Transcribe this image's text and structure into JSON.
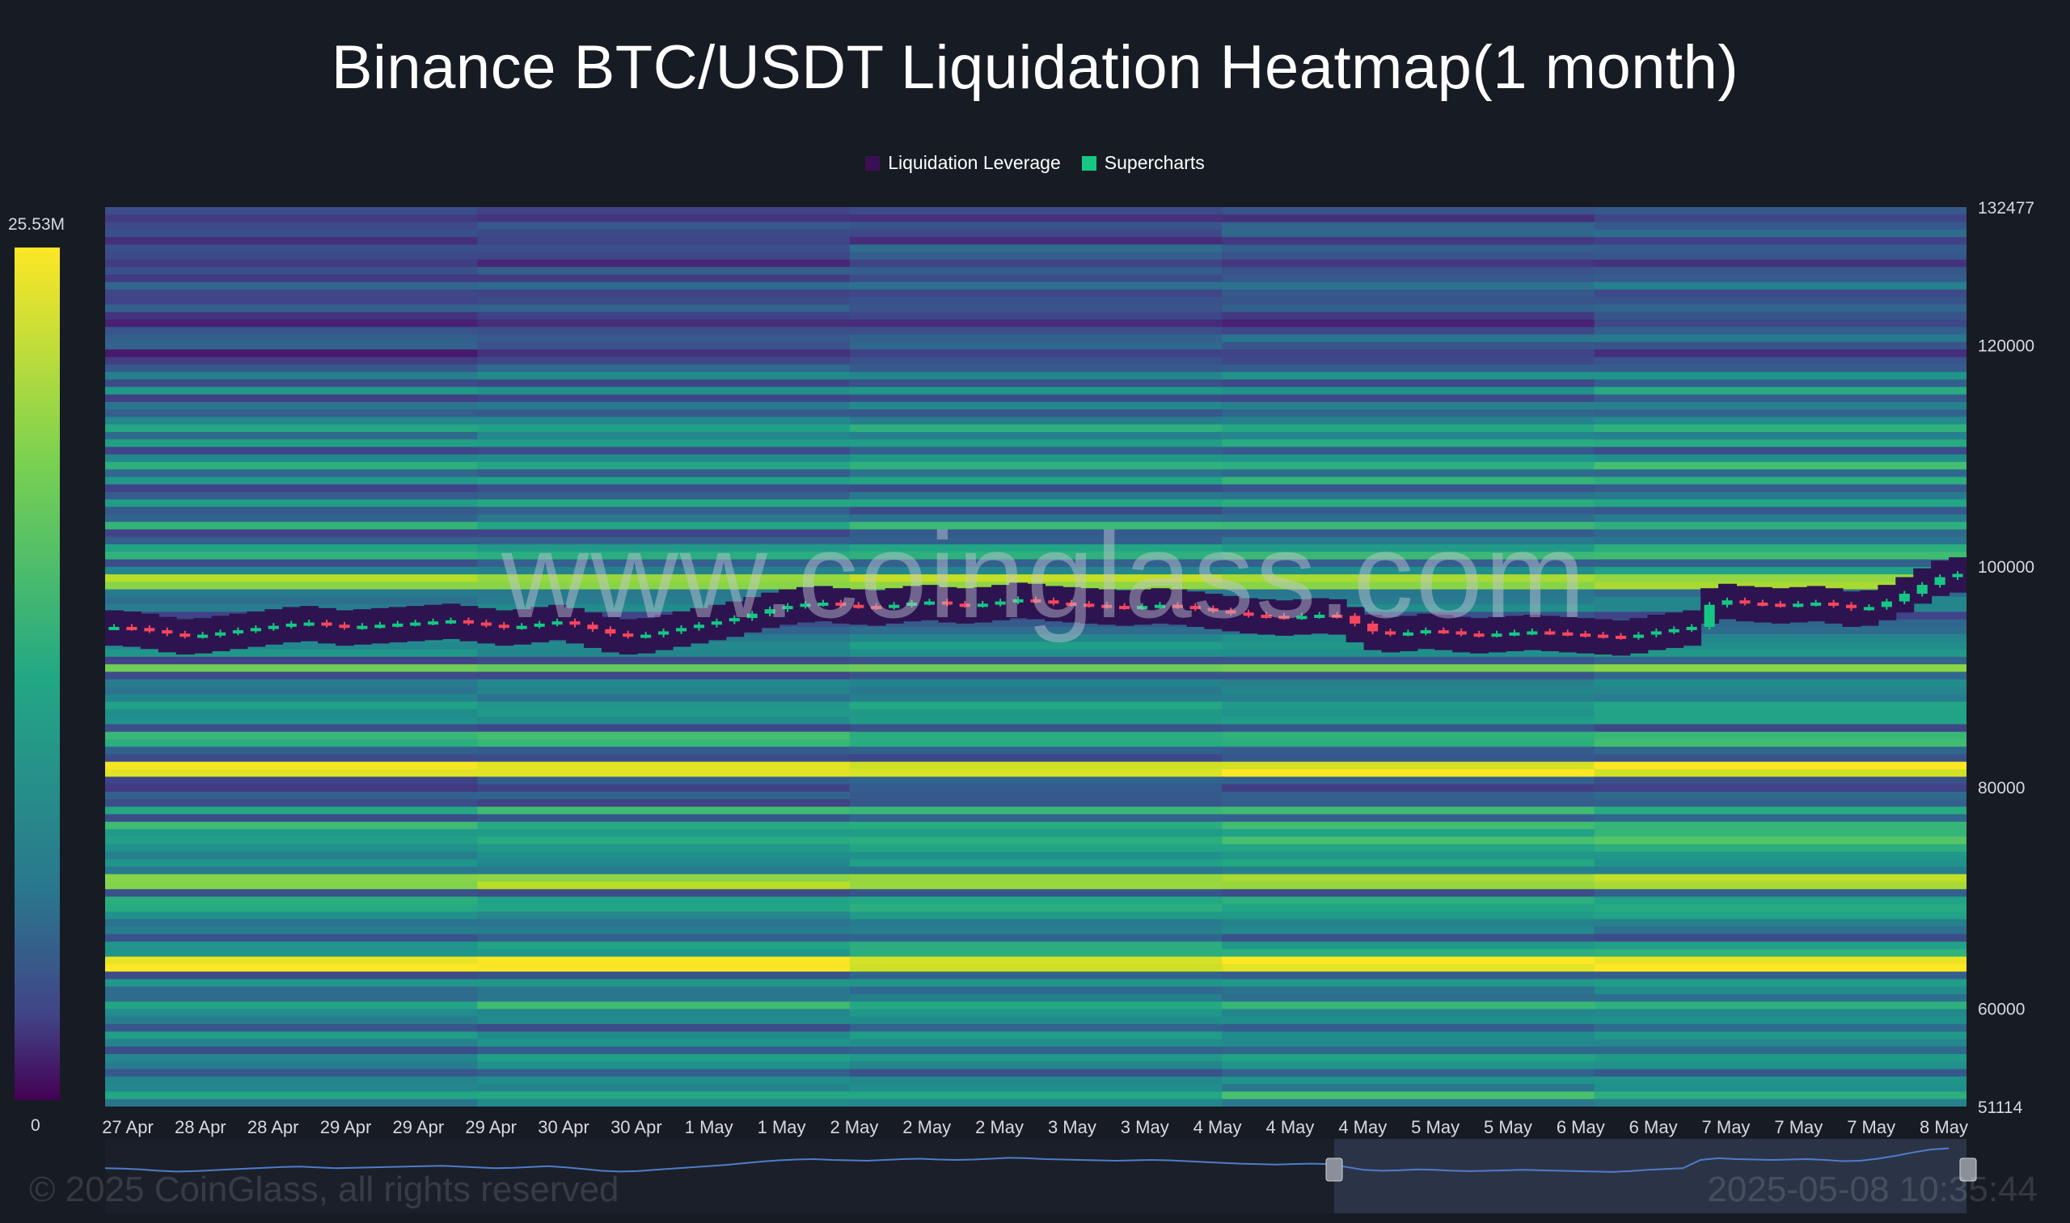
{
  "chart_data": {
    "type": "heatmap",
    "title": "Binance BTC/USDT Liquidation Heatmap(1 month)",
    "legend": [
      {
        "label": "Liquidation Leverage",
        "color": "#3b0f55"
      },
      {
        "label": "Supercharts",
        "color": "#16c784"
      }
    ],
    "legend_position": "top-center",
    "x_tick_labels": [
      "27 Apr",
      "28 Apr",
      "28 Apr",
      "29 Apr",
      "29 Apr",
      "29 Apr",
      "30 Apr",
      "30 Apr",
      "1 May",
      "1 May",
      "2 May",
      "2 May",
      "2 May",
      "3 May",
      "3 May",
      "4 May",
      "4 May",
      "4 May",
      "5 May",
      "5 May",
      "6 May",
      "6 May",
      "7 May",
      "7 May",
      "7 May",
      "8 May"
    ],
    "y_tick_labels": [
      "132477",
      "120000",
      "100000",
      "80000",
      "60000",
      "51114"
    ],
    "y_tick_values": [
      132477,
      120000,
      100000,
      80000,
      60000,
      51114
    ],
    "ylim": [
      51114,
      132477
    ],
    "colorbar": {
      "max_label": "25.53M",
      "min_label": "0"
    },
    "price_path": [
      94500,
      94400,
      94200,
      93900,
      93700,
      93800,
      94000,
      94200,
      94400,
      94600,
      94800,
      94900,
      94700,
      94500,
      94600,
      94700,
      94800,
      94900,
      95000,
      95100,
      94900,
      94700,
      94500,
      94600,
      94800,
      95000,
      94700,
      94300,
      93900,
      93700,
      93800,
      94100,
      94400,
      94700,
      95000,
      95300,
      95700,
      96100,
      96400,
      96600,
      96700,
      96500,
      96400,
      96300,
      96500,
      96700,
      96800,
      96600,
      96500,
      96600,
      96800,
      97000,
      96900,
      96700,
      96600,
      96500,
      96400,
      96300,
      96400,
      96500,
      96400,
      96200,
      96000,
      95800,
      95600,
      95500,
      95400,
      95500,
      95600,
      95500,
      94800,
      94100,
      93900,
      94000,
      94200,
      94100,
      93900,
      93800,
      93900,
      94000,
      94100,
      94000,
      93900,
      93800,
      93700,
      93600,
      93800,
      94100,
      94300,
      94500,
      96500,
      96900,
      96700,
      96600,
      96500,
      96600,
      96700,
      96500,
      96200,
      96300,
      96800,
      97500,
      98300,
      99000,
      99300
    ]
  },
  "watermark": "www.coinglass.com",
  "footer": {
    "copyright": "© 2025 CoinGlass, all rights reserved",
    "timestamp": "2025-05-08 10:35:44"
  },
  "colors": {
    "background": "#171b23",
    "up_candle": "#16c784",
    "down_candle": "#f6465d",
    "navigator_line": "#4f7cc8"
  }
}
